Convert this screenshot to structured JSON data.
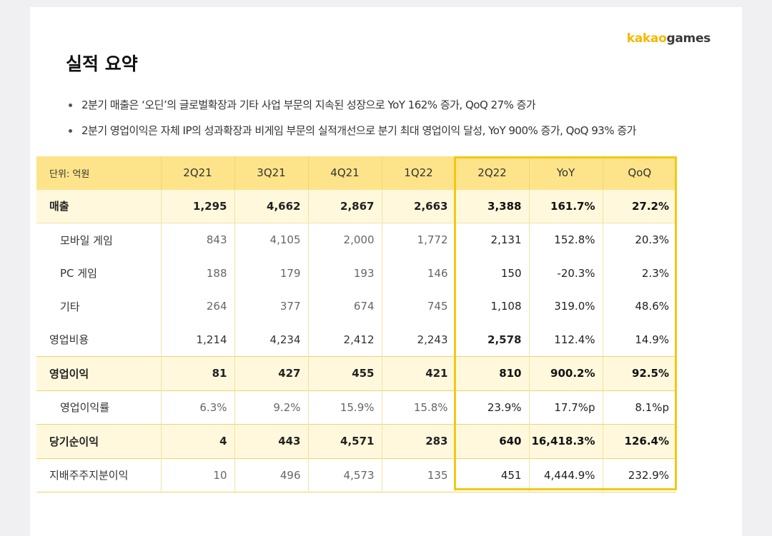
{
  "logo": {
    "part1": "kakao",
    "part2": "games"
  },
  "title": "실적 요약",
  "bullets": [
    "2분기 매출은 ‘오딘’의 글로벌확장과 기타 사업 부문의 지속된 성장으로 YoY 162% 증가, QoQ 27% 증가",
    "2분기 영업이익은 자체 IP의 성과확장과 비게임 부문의 실적개선으로 분기 최대 영업이익 달성, YoY 900% 증가, QoQ 93% 증가"
  ],
  "table": {
    "headers": [
      "단위: 억원",
      "2Q21",
      "3Q21",
      "4Q21",
      "1Q22",
      "2Q22",
      "YoY",
      "QoQ"
    ],
    "rows": [
      {
        "label": "매출",
        "values": [
          "1,295",
          "4,662",
          "2,867",
          "2,663",
          "3,388",
          "161.7%",
          "27.2%"
        ]
      },
      {
        "label": "모바일 게임",
        "values": [
          "843",
          "4,105",
          "2,000",
          "1,772",
          "2,131",
          "152.8%",
          "20.3%"
        ]
      },
      {
        "label": "PC 게임",
        "values": [
          "188",
          "179",
          "193",
          "146",
          "150",
          "-20.3%",
          "2.3%"
        ]
      },
      {
        "label": "기타",
        "values": [
          "264",
          "377",
          "674",
          "745",
          "1,108",
          "319.0%",
          "48.6%"
        ]
      },
      {
        "label": "영업비용",
        "values": [
          "1,214",
          "4,234",
          "2,412",
          "2,243",
          "2,578",
          "112.4%",
          "14.9%"
        ]
      },
      {
        "label": "영업이익",
        "values": [
          "81",
          "427",
          "455",
          "421",
          "810",
          "900.2%",
          "92.5%"
        ]
      },
      {
        "label": "영업이익률",
        "values": [
          "6.3%",
          "9.2%",
          "15.9%",
          "15.8%",
          "23.9%",
          "17.7%p",
          "8.1%p"
        ]
      },
      {
        "label": "당기순이익",
        "values": [
          "4",
          "443",
          "4,571",
          "283",
          "640",
          "16,418.3%",
          "126.4%"
        ]
      },
      {
        "label": "지배주주지분이익",
        "values": [
          "10",
          "496",
          "4,573",
          "135",
          "451",
          "4,444.9%",
          "232.9%"
        ]
      }
    ]
  }
}
